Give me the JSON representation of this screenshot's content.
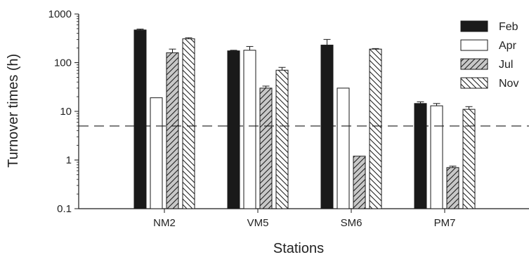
{
  "chart_data": {
    "type": "bar",
    "xlabel": "Stations",
    "ylabel": "Turnover times (h)",
    "yscale": "log",
    "ylim": [
      0.1,
      1000
    ],
    "yticks": [
      {
        "value": 1000,
        "label": "1000"
      },
      {
        "value": 100,
        "label": "100"
      },
      {
        "value": 10,
        "label": "10"
      },
      {
        "value": 1,
        "label": "1"
      },
      {
        "value": 0.1,
        "label": "0.1"
      }
    ],
    "categories": [
      "NM2",
      "VM5",
      "SM6",
      "PM7"
    ],
    "series": [
      {
        "name": "Feb",
        "style": "solid",
        "values": [
          470,
          175,
          230,
          14.5
        ],
        "errors": [
          20,
          5,
          70,
          1.2
        ]
      },
      {
        "name": "Apr",
        "style": "open",
        "values": [
          19,
          180,
          30,
          13
        ],
        "errors": [
          0,
          35,
          0,
          1.5
        ]
      },
      {
        "name": "Jul",
        "style": "gray-hatch",
        "values": [
          160,
          30,
          1.2,
          0.7
        ],
        "errors": [
          30,
          3,
          0,
          0.05
        ]
      },
      {
        "name": "Nov",
        "style": "hatch",
        "values": [
          310,
          70,
          190,
          11
        ],
        "errors": [
          15,
          10,
          5,
          1.5
        ]
      }
    ],
    "reference_line": {
      "value": 5,
      "style": "dashed"
    },
    "legend": {
      "position": "top-right"
    },
    "grid": false,
    "colors": {
      "solid": "#1a1a1a",
      "gray": "#c8c8c8",
      "outline": "#1a1a1a",
      "background": "#ffffff"
    }
  }
}
